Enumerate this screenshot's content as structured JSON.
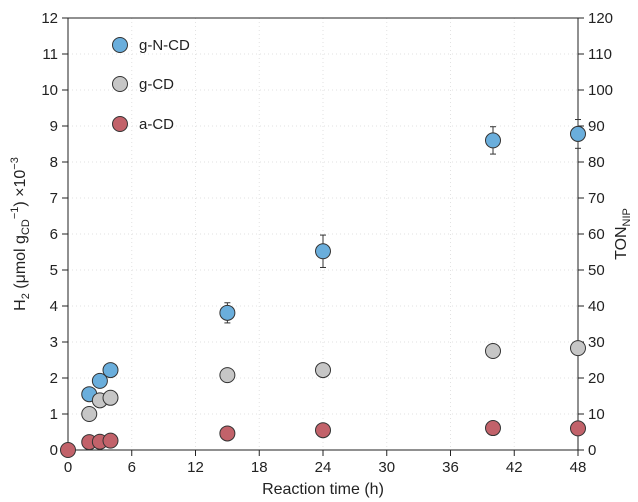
{
  "chart_data": {
    "type": "scatter",
    "xlabel": "Reaction time (h)",
    "ylabel": "H2 (μmol gCD−1) ×10−3",
    "ylabel_parts": {
      "pre": "H",
      "sub1": "2",
      "mid1": " (μmol g",
      "sub2": "CD",
      "sup1": "−1",
      "mid2": ") ×10",
      "sup2": "−3"
    },
    "y2label": "TONNIP",
    "y2label_parts": {
      "main": "TON",
      "sub": "NIP"
    },
    "xlim": [
      0,
      48
    ],
    "ylim": [
      0,
      12
    ],
    "y2lim": [
      0,
      120
    ],
    "x_ticks": [
      "0",
      "6",
      "12",
      "18",
      "24",
      "30",
      "36",
      "42",
      "48"
    ],
    "y_ticks": [
      "0",
      "1",
      "2",
      "3",
      "4",
      "5",
      "6",
      "7",
      "8",
      "9",
      "10",
      "11",
      "12"
    ],
    "y2_ticks": [
      "0",
      "10",
      "20",
      "30",
      "40",
      "50",
      "60",
      "70",
      "80",
      "90",
      "100",
      "110",
      "120"
    ],
    "grid": false,
    "legend_position": "top-left",
    "series": [
      {
        "name": "g-N-CD",
        "color": "#6aaedc",
        "points": [
          {
            "x": 2,
            "y": 1.55
          },
          {
            "x": 3,
            "y": 1.92
          },
          {
            "x": 4,
            "y": 2.22
          },
          {
            "x": 15,
            "y": 3.81,
            "err": 0.28
          },
          {
            "x": 24,
            "y": 5.52,
            "err": 0.45
          },
          {
            "x": 40,
            "y": 8.6,
            "err": 0.38
          },
          {
            "x": 48,
            "y": 8.78,
            "err": 0.4
          }
        ]
      },
      {
        "name": "g-CD",
        "color": "#c6c6c6",
        "points": [
          {
            "x": 2,
            "y": 1.0
          },
          {
            "x": 3,
            "y": 1.38
          },
          {
            "x": 4,
            "y": 1.45
          },
          {
            "x": 15,
            "y": 2.08
          },
          {
            "x": 24,
            "y": 2.22
          },
          {
            "x": 40,
            "y": 2.75
          },
          {
            "x": 48,
            "y": 2.83
          }
        ]
      },
      {
        "name": "a-CD",
        "color": "#c2626a",
        "points": [
          {
            "x": 0,
            "y": 0.0
          },
          {
            "x": 2,
            "y": 0.22
          },
          {
            "x": 3,
            "y": 0.23
          },
          {
            "x": 4,
            "y": 0.26
          },
          {
            "x": 15,
            "y": 0.46
          },
          {
            "x": 24,
            "y": 0.55
          },
          {
            "x": 40,
            "y": 0.61
          },
          {
            "x": 48,
            "y": 0.6
          }
        ]
      }
    ]
  }
}
